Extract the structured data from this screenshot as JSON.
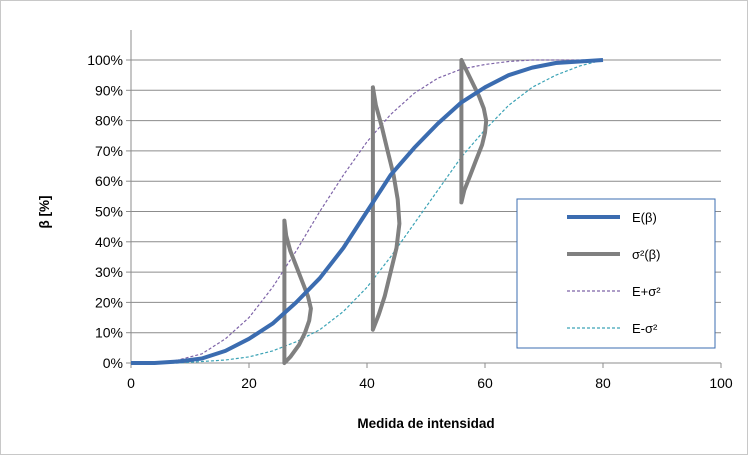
{
  "chart_data": {
    "type": "line",
    "title": "",
    "xlabel": "Medida de intensidad",
    "ylabel": "β [%]",
    "xlim": [
      0,
      100
    ],
    "ylim": [
      0,
      100
    ],
    "x_ticks": [
      "0",
      "20",
      "40",
      "60",
      "80",
      "100"
    ],
    "y_ticks": [
      "0%",
      "10%",
      "20%",
      "30%",
      "40%",
      "50%",
      "60%",
      "70%",
      "80%",
      "90%",
      "100%"
    ],
    "grid": "horizontal",
    "legend_position": "right",
    "legend": [
      "E(β)",
      "σ²(β)",
      "E+σ²",
      "E-σ²"
    ],
    "colors": {
      "mean": "#3b6cb0",
      "variance": "#808080",
      "upper": "#7e64a8",
      "lower": "#3ca3b6"
    },
    "series": [
      {
        "name": "E(β)",
        "style": "solid-thick",
        "points": [
          [
            0,
            0
          ],
          [
            4,
            0
          ],
          [
            8,
            0.5
          ],
          [
            12,
            1.5
          ],
          [
            16,
            4
          ],
          [
            20,
            8
          ],
          [
            24,
            13
          ],
          [
            28,
            20
          ],
          [
            32,
            28
          ],
          [
            36,
            38
          ],
          [
            40,
            50
          ],
          [
            44,
            62
          ],
          [
            48,
            71
          ],
          [
            52,
            79
          ],
          [
            56,
            86
          ],
          [
            60,
            91
          ],
          [
            64,
            95
          ],
          [
            68,
            97.5
          ],
          [
            72,
            99
          ],
          [
            76,
            99.5
          ],
          [
            80,
            100
          ]
        ]
      },
      {
        "name": "σ²(β)",
        "style": "solid-thick",
        "curves": [
          {
            "x0": 26,
            "points": [
              [
                26,
                0
              ],
              [
                27,
                2
              ],
              [
                28.5,
                6
              ],
              [
                29.5,
                10
              ],
              [
                30.2,
                14
              ],
              [
                30.5,
                18
              ],
              [
                30,
                22
              ],
              [
                29,
                27
              ],
              [
                28,
                32
              ],
              [
                27,
                37
              ],
              [
                26.3,
                42
              ],
              [
                26,
                47
              ]
            ]
          },
          {
            "x0": 41,
            "points": [
              [
                41,
                11
              ],
              [
                42,
                16
              ],
              [
                43,
                22
              ],
              [
                44,
                30
              ],
              [
                45,
                38
              ],
              [
                45.5,
                46
              ],
              [
                45.2,
                54
              ],
              [
                44.5,
                62
              ],
              [
                43.5,
                70
              ],
              [
                42.5,
                78
              ],
              [
                41.5,
                85
              ],
              [
                41,
                91
              ]
            ]
          },
          {
            "x0": 56,
            "points": [
              [
                56,
                53
              ],
              [
                56.5,
                57
              ],
              [
                57.5,
                62
              ],
              [
                58.5,
                67
              ],
              [
                59.5,
                72
              ],
              [
                60,
                76
              ],
              [
                60.2,
                80
              ],
              [
                59.8,
                84
              ],
              [
                59,
                88
              ],
              [
                58,
                92
              ],
              [
                57,
                96
              ],
              [
                56.5,
                98
              ],
              [
                56,
                100
              ]
            ]
          }
        ]
      },
      {
        "name": "E+σ²",
        "style": "dashed",
        "points": [
          [
            0,
            0
          ],
          [
            4,
            0
          ],
          [
            8,
            1
          ],
          [
            12,
            3
          ],
          [
            16,
            8
          ],
          [
            20,
            15
          ],
          [
            24,
            25
          ],
          [
            28,
            37
          ],
          [
            32,
            50
          ],
          [
            36,
            62
          ],
          [
            40,
            73
          ],
          [
            44,
            82
          ],
          [
            48,
            89
          ],
          [
            52,
            94
          ],
          [
            56,
            97
          ],
          [
            60,
            98.5
          ],
          [
            64,
            99.5
          ],
          [
            68,
            100
          ],
          [
            72,
            100
          ],
          [
            76,
            100
          ],
          [
            80,
            100
          ]
        ]
      },
      {
        "name": "E-σ²",
        "style": "dashed",
        "points": [
          [
            0,
            0
          ],
          [
            4,
            0
          ],
          [
            8,
            0
          ],
          [
            12,
            0.5
          ],
          [
            16,
            1
          ],
          [
            20,
            2
          ],
          [
            24,
            4
          ],
          [
            28,
            7
          ],
          [
            32,
            11
          ],
          [
            36,
            17
          ],
          [
            40,
            25
          ],
          [
            44,
            35
          ],
          [
            48,
            46
          ],
          [
            52,
            57
          ],
          [
            56,
            68
          ],
          [
            60,
            77
          ],
          [
            64,
            85
          ],
          [
            68,
            91
          ],
          [
            72,
            95
          ],
          [
            76,
            98
          ],
          [
            80,
            100
          ]
        ]
      }
    ]
  }
}
